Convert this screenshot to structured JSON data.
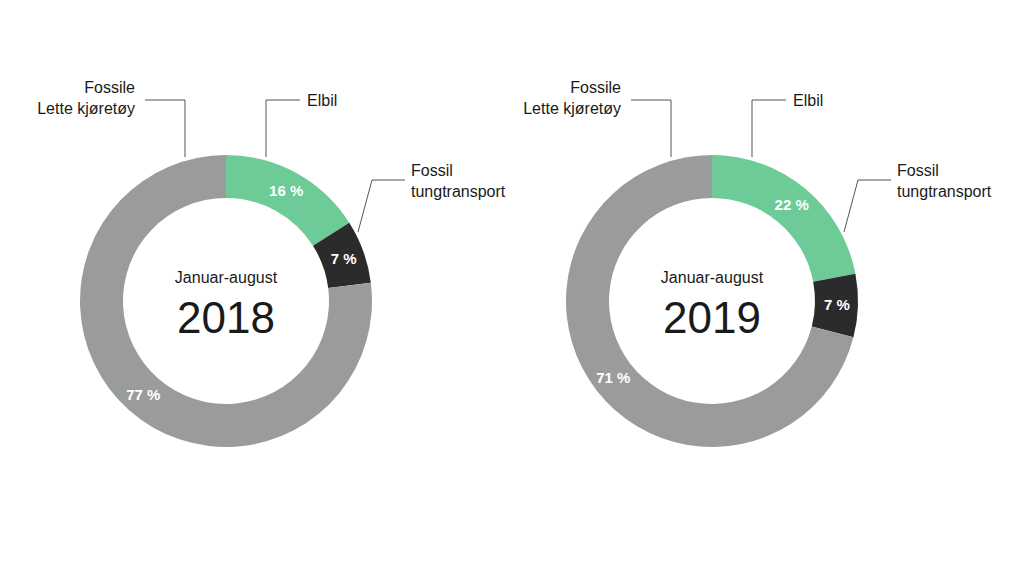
{
  "chart_data": [
    {
      "type": "pie",
      "subtitle": "Januar-august",
      "title": "2018",
      "categories": [
        "Elbil",
        "Fossil\ntungtransport",
        "Fossile\nLette kjøretøy"
      ],
      "values": [
        16,
        7,
        77
      ],
      "value_labels": [
        "16 %",
        "7 %",
        "77 %"
      ],
      "colors": [
        "#6ccb97",
        "#2b2b2b",
        "#9a9c9b"
      ],
      "data_labels": true
    },
    {
      "type": "pie",
      "subtitle": "Januar-august",
      "title": "2019",
      "categories": [
        "Elbil",
        "Fossil\ntungtransport",
        "Fossile\nLette kjøretøy"
      ],
      "values": [
        22,
        7,
        71
      ],
      "value_labels": [
        "22 %",
        "7 %",
        "71 %"
      ],
      "colors": [
        "#6ccb97",
        "#2b2b2b",
        "#9a9c9b"
      ],
      "data_labels": true
    }
  ]
}
